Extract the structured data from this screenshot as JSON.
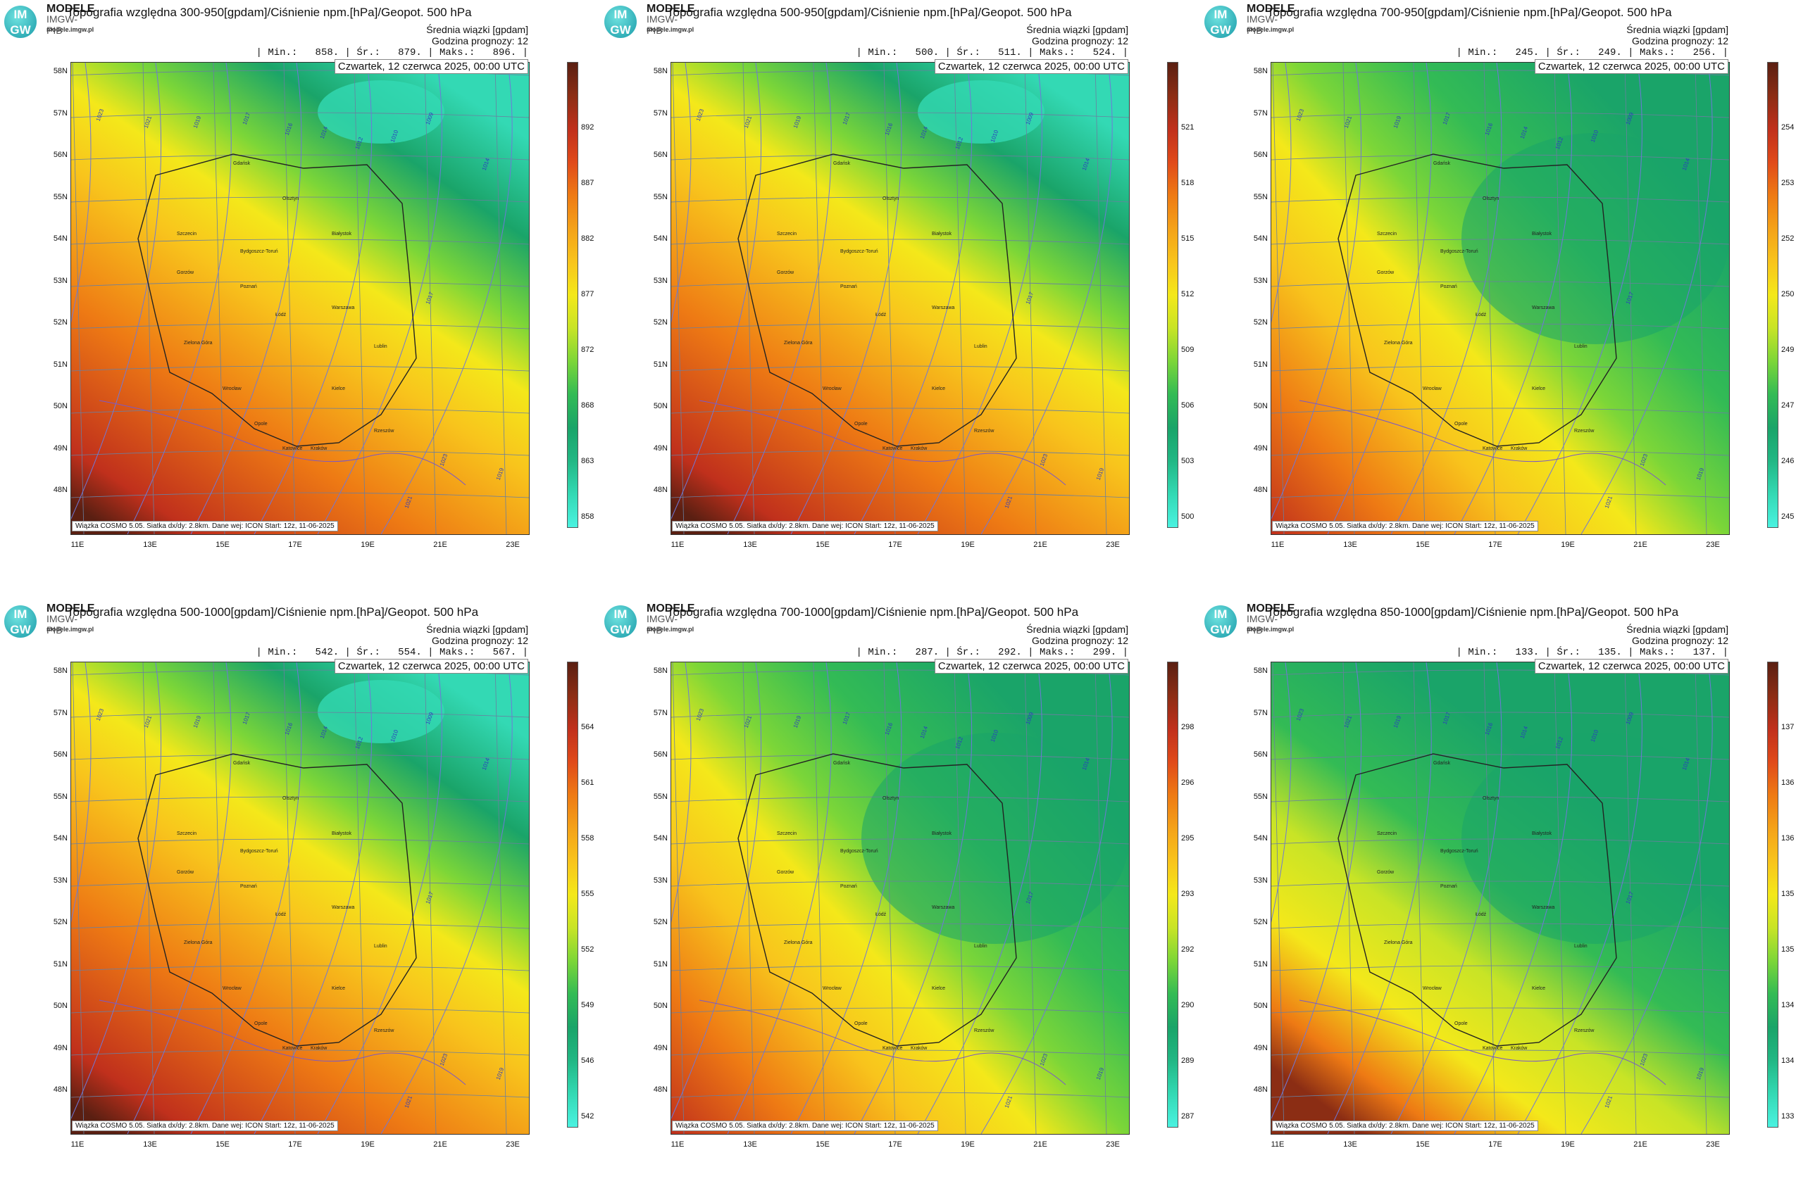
{
  "logo": {
    "circle_text": "IM GW",
    "modele": "MODELE",
    "imgw": "IMGW-PIB",
    "url": "modele.imgw.pl"
  },
  "common": {
    "subtitle": "Średnia wiązki [gpdam]",
    "forecast_hour": "Godzina prognozy: 12",
    "date": "Czwartek, 12 czerwca 2025, 00:00 UTC",
    "footer": "Wiązka COSMO 5.05. Siatka dx/dy: 2.8km. Dane wej: ICON Start: 12z, 11-06-2025",
    "lat_labels": [
      "58N",
      "57N",
      "56N",
      "55N",
      "54N",
      "53N",
      "52N",
      "51N",
      "50N",
      "49N",
      "48N"
    ],
    "lon_labels": [
      "11E",
      "13E",
      "15E",
      "17E",
      "19E",
      "21E",
      "23E"
    ],
    "cities": [
      "Gdańsk",
      "Olsztyn",
      "Szczecin",
      "Bydgoszcz-Toruń",
      "Białystok",
      "Gorzów",
      "Poznań",
      "Warszawa",
      "Łódź",
      "Zielona Góra",
      "Lublin",
      "Wrocław",
      "Kielce",
      "Opole",
      "Katowice",
      "Kraków",
      "Rzeszów"
    ],
    "isobar_labels": [
      "1023",
      "1021",
      "1019",
      "1017",
      "1016",
      "1014",
      "1012",
      "1010",
      "1009",
      "1023",
      "1021",
      "1019",
      "1017",
      "1014"
    ]
  },
  "panels": [
    {
      "title": "Topografia względna 300-950[gpdam]/Ciśnienie npm.[hPa]/Geopot. 500 hPa",
      "stats": "| Min.:   858. | Śr.:   879. | Maks.:   896. |",
      "colorbar_ticks": [
        "892",
        "887",
        "882",
        "877",
        "872",
        "868",
        "863",
        "858"
      ],
      "pattern": "A"
    },
    {
      "title": "Topografia względna 500-950[gpdam]/Ciśnienie npm.[hPa]/Geopot. 500 hPa",
      "stats": "| Min.:   500. | Śr.:   511. | Maks.:   524. |",
      "colorbar_ticks": [
        "521",
        "518",
        "515",
        "512",
        "509",
        "506",
        "503",
        "500"
      ],
      "pattern": "A"
    },
    {
      "title": "Topografia względna 700-950[gpdam]/Ciśnienie npm.[hPa]/Geopot. 500 hPa",
      "stats": "| Min.:   245. | Śr.:   249. | Maks.:   256. |",
      "colorbar_ticks": [
        "254",
        "253",
        "252",
        "250",
        "249",
        "247",
        "246",
        "245"
      ],
      "pattern": "B"
    },
    {
      "title": "Topografia względna 500-1000[gpdam]/Ciśnienie npm.[hPa]/Geopot. 500 hPa",
      "stats": "| Min.:   542. | Śr.:   554. | Maks.:   567. |",
      "colorbar_ticks": [
        "564",
        "561",
        "558",
        "555",
        "552",
        "549",
        "546",
        "542"
      ],
      "pattern": "A"
    },
    {
      "title": "Topografia względna 700-1000[gpdam]/Ciśnienie npm.[hPa]/Geopot. 500 hPa",
      "stats": "| Min.:   287. | Śr.:   292. | Maks.:   299. |",
      "colorbar_ticks": [
        "298",
        "296",
        "295",
        "293",
        "292",
        "290",
        "289",
        "287"
      ],
      "pattern": "B"
    },
    {
      "title": "Topografia względna 850-1000[gpdam]/Ciśnienie npm.[hPa]/Geopot. 500 hPa",
      "stats": "| Min.:   133. | Śr.:   135. | Maks.:   137. |",
      "colorbar_ticks": [
        "137",
        "136",
        "136",
        "135",
        "135",
        "134",
        "134",
        "133"
      ],
      "pattern": "C"
    }
  ],
  "colors": {
    "colorbar": [
      "#5a1f12",
      "#8b2d14",
      "#c0301c",
      "#e04a1a",
      "#ee7a14",
      "#f4a219",
      "#f8c41c",
      "#f4e81a",
      "#c8e426",
      "#7cd638",
      "#33bb55",
      "#1aa469",
      "#22b784",
      "#33d9b4",
      "#4af2e0"
    ]
  }
}
